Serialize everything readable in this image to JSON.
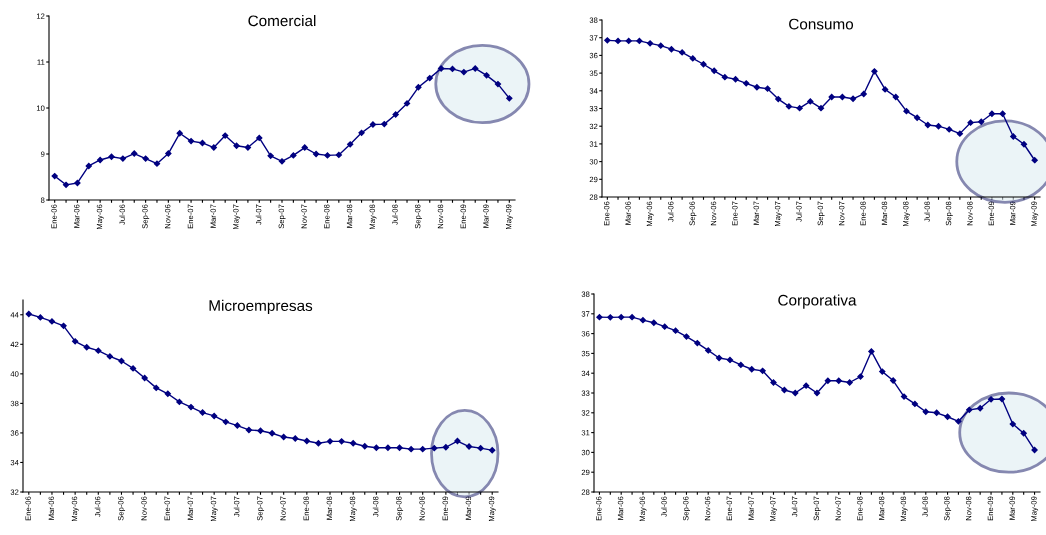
{
  "chart_data": [
    {
      "type": "line",
      "title": "Comercial",
      "categories": [
        "Ene-06",
        null,
        "Mar-06",
        null,
        "May-06",
        null,
        "Jul-06",
        null,
        "Sep-06",
        null,
        "Nov-06",
        null,
        "Ene-07",
        null,
        "Mar-07",
        null,
        "May-07",
        null,
        "Jul-07",
        null,
        "Sep-07",
        null,
        "Nov-07",
        null,
        "Ene-08",
        null,
        "Mar-08",
        null,
        "May-08",
        null,
        "Jul-08",
        null,
        "Sep-08",
        null,
        "Nov-08",
        null,
        "Ene-09",
        null,
        "Mar-09",
        null,
        "May-09"
      ],
      "series": [
        {
          "color": "#000080",
          "values": [
            8.52,
            8.33,
            8.37,
            8.74,
            8.87,
            8.94,
            8.9,
            9.01,
            8.9,
            8.79,
            9.01,
            9.45,
            9.28,
            9.24,
            9.14,
            9.4,
            9.18,
            9.14,
            9.35,
            8.96,
            8.84,
            8.97,
            9.14,
            9.0,
            8.97,
            8.98,
            9.21,
            9.46,
            9.64,
            9.65,
            9.86,
            10.1,
            10.45,
            10.65,
            10.86,
            10.85,
            10.78,
            10.86,
            10.71,
            10.52,
            10.21
          ]
        }
      ],
      "ylim": [
        8,
        12
      ],
      "yticks": [
        8,
        9,
        10,
        11,
        12
      ],
      "marker": "diamond",
      "line_style": "solid"
    },
    {
      "type": "line",
      "title": "Consumo",
      "categories": [
        "Ene-06",
        null,
        "Mar-06",
        null,
        "May-06",
        null,
        "Jul-06",
        null,
        "Sep-06",
        null,
        "Nov-06",
        null,
        "Ene-07",
        null,
        "Mar-07",
        null,
        "May-07",
        null,
        "Jul-07",
        null,
        "Sep-07",
        null,
        "Nov-07",
        null,
        "Ene-08",
        null,
        "Mar-08",
        null,
        "May-08",
        null,
        "Jul-08",
        null,
        "Sep-08",
        null,
        "Nov-08",
        null,
        "Ene-09",
        null,
        "Mar-09",
        null,
        "May-09"
      ],
      "series": [
        {
          "color": "#000080",
          "values": [
            36.85,
            36.82,
            36.82,
            36.82,
            36.68,
            36.55,
            36.35,
            36.17,
            35.83,
            35.5,
            35.13,
            34.77,
            34.65,
            34.42,
            34.2,
            34.12,
            33.53,
            33.12,
            33.02,
            33.4,
            33.02,
            33.65,
            33.65,
            33.55,
            33.82,
            35.1,
            34.08,
            33.65,
            32.85,
            32.48,
            32.07,
            32.0,
            31.82,
            31.58,
            32.2,
            32.25,
            32.7,
            32.7,
            31.42,
            30.98,
            30.08
          ]
        }
      ],
      "ylim": [
        28,
        38
      ],
      "yticks": [
        28,
        29,
        30,
        31,
        32,
        33,
        34,
        35,
        36,
        37,
        38
      ],
      "marker": "diamond",
      "line_style": "solid"
    },
    {
      "type": "line",
      "title": "Microempresas",
      "categories": [
        "Ene-06",
        null,
        "Mar-06",
        null,
        "May-06",
        null,
        "Jul-06",
        null,
        "Sep-06",
        null,
        "Nov-06",
        null,
        "Ene-07",
        null,
        "Mar-07",
        null,
        "May-07",
        null,
        "Jul-07",
        null,
        "Sep-07",
        null,
        "Nov-07",
        null,
        "Ene-08",
        null,
        "Mar-08",
        null,
        "May-08",
        null,
        "Jul-08",
        null,
        "Sep-08",
        null,
        "Nov-08",
        null,
        "Ene-09",
        null,
        "Mar-09",
        null,
        "May-09"
      ],
      "series": [
        {
          "color": "#000080",
          "values": [
            44.05,
            43.82,
            43.55,
            43.25,
            42.2,
            41.8,
            41.57,
            41.18,
            40.87,
            40.37,
            39.72,
            39.05,
            38.65,
            38.1,
            37.75,
            37.38,
            37.15,
            36.75,
            36.5,
            36.2,
            36.15,
            35.98,
            35.72,
            35.62,
            35.45,
            35.3,
            35.43,
            35.43,
            35.3,
            35.1,
            35.0,
            35.0,
            35.0,
            34.9,
            34.9,
            34.97,
            35.03,
            35.45,
            35.08,
            34.97,
            34.83
          ]
        }
      ],
      "ylim": [
        32,
        45
      ],
      "yticks": [
        32,
        34,
        36,
        38,
        40,
        42,
        44
      ],
      "marker": "diamond",
      "line_style": "solid"
    },
    {
      "type": "line",
      "title": "Corporativa",
      "categories": [
        "Ene-06",
        null,
        "Mar-06",
        null,
        "May-06",
        null,
        "Jul-06",
        null,
        "Sep-06",
        null,
        "Nov-06",
        null,
        "Ene-07",
        null,
        "Mar-07",
        null,
        "May-07",
        null,
        "Jul-07",
        null,
        "Sep-07",
        null,
        "Nov-07",
        null,
        "Ene-08",
        null,
        "Mar-08",
        null,
        "May-08",
        null,
        "Jul-08",
        null,
        "Sep-08",
        null,
        "Nov-08",
        null,
        "Ene-09",
        null,
        "Mar-09",
        null,
        "May-09"
      ],
      "series": [
        {
          "color": "#000080",
          "values": [
            36.83,
            36.82,
            36.83,
            36.83,
            36.68,
            36.55,
            36.35,
            36.15,
            35.85,
            35.52,
            35.15,
            34.77,
            34.67,
            34.42,
            34.2,
            34.12,
            33.53,
            33.15,
            33.0,
            33.37,
            33.0,
            33.62,
            33.62,
            33.53,
            33.83,
            35.1,
            34.08,
            33.63,
            32.82,
            32.45,
            32.05,
            32.0,
            31.8,
            31.57,
            32.15,
            32.23,
            32.68,
            32.7,
            31.43,
            30.97,
            30.12
          ]
        }
      ],
      "ylim": [
        28,
        38
      ],
      "yticks": [
        28,
        29,
        30,
        31,
        32,
        33,
        34,
        35,
        36,
        37,
        38
      ],
      "marker": "diamond",
      "line_style": "solid"
    }
  ]
}
